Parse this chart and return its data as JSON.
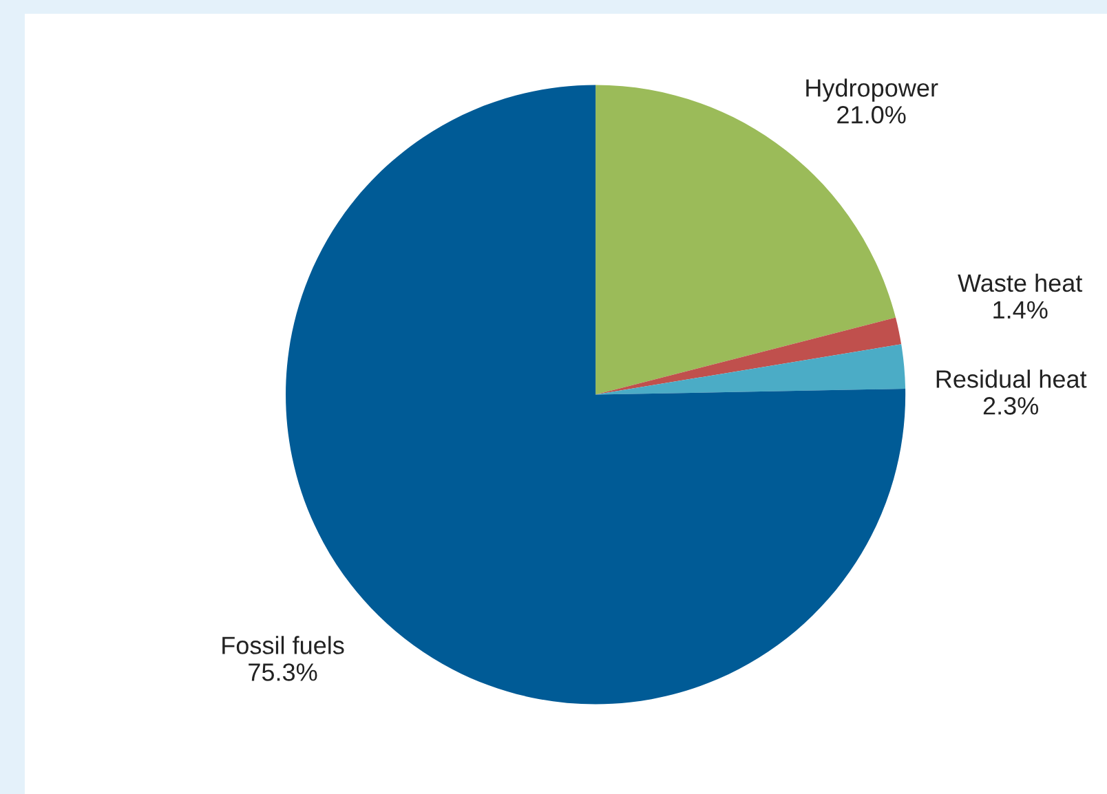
{
  "chart_data": {
    "type": "pie",
    "categories": [
      "Hydropower",
      "Waste heat",
      "Residual heat",
      "Fossil fuels"
    ],
    "values": [
      21.0,
      1.4,
      2.3,
      75.3
    ],
    "value_labels": [
      "21.0%",
      "1.4%",
      "2.3%",
      "75.3%"
    ],
    "colors": [
      "#9bbb59",
      "#c0504d",
      "#4bacc6",
      "#005b96"
    ],
    "legend": false
  }
}
